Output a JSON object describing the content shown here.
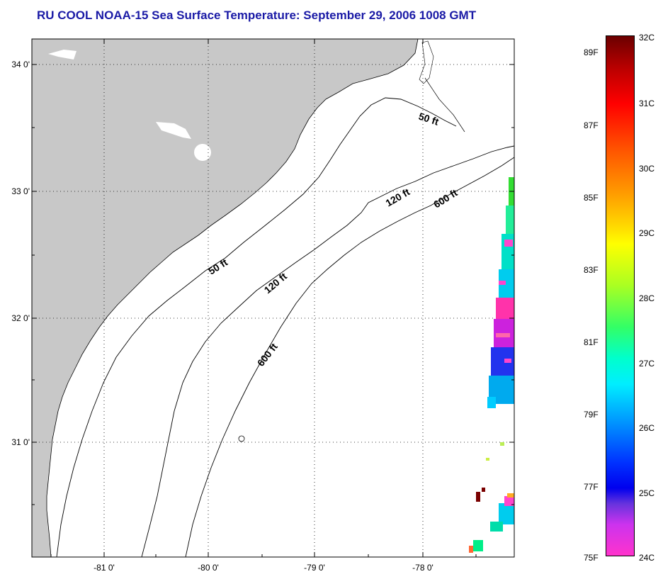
{
  "title": "RU COOL  NOAA-15  Sea Surface Temperature:  September 29, 2006 1008 GMT",
  "map": {
    "lon_range": [
      -81.67,
      -77.2
    ],
    "lat_range": [
      30.2,
      34.2
    ],
    "lon_ticks": [
      {
        "value": -81,
        "label": "-81 0'"
      },
      {
        "value": -80,
        "label": "-80 0'"
      },
      {
        "value": -79,
        "label": "-79 0'"
      },
      {
        "value": -78,
        "label": "-78 0'"
      }
    ],
    "lat_ticks": [
      {
        "value": 34,
        "label": "34 0'"
      },
      {
        "value": 33,
        "label": "33 0'"
      },
      {
        "value": 32,
        "label": "32 0'"
      },
      {
        "value": 31,
        "label": "31 0'"
      }
    ],
    "contours": [
      {
        "label": "50 ft"
      },
      {
        "label": "120 ft"
      },
      {
        "label": "600 ft"
      }
    ],
    "land_color": "#c8c8c8"
  },
  "colorbar": {
    "celsius_labels": [
      "32C",
      "31C",
      "30C",
      "29C",
      "28C",
      "27C",
      "26C",
      "25C",
      "24C"
    ],
    "fahrenheit_labels": [
      "89F",
      "87F",
      "85F",
      "83F",
      "81F",
      "79F",
      "77F",
      "75F"
    ]
  }
}
